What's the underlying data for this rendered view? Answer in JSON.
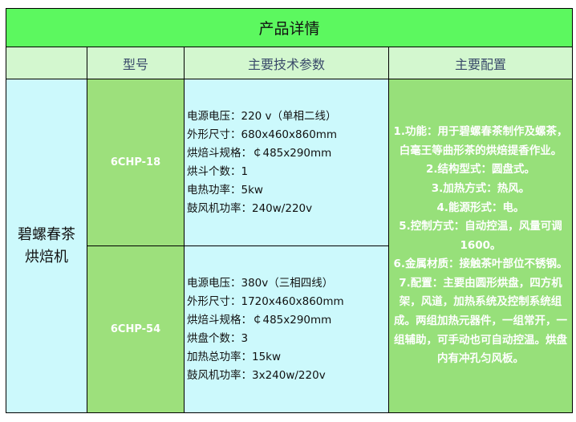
{
  "title": "产品详情",
  "headers": [
    "",
    "型号",
    "主要技术参数",
    "主要配置"
  ],
  "product_name_lines": [
    "碧螺春茶",
    "烘焙机"
  ],
  "models": [
    {
      "model": "6CHP-18",
      "specs": [
        "电源电压：220 v（单相二线）",
        "外形尺寸：680x460x860mm",
        "烘焙斗规格：￠485x290mm",
        "烘斗个数：1",
        "电热功率：5kw",
        "鼓风机功率：240w/220v"
      ]
    },
    {
      "model": "6CHP-54",
      "specs": [
        "电源电压：380v（三相四线）",
        "外形尺寸：1720x460x860mm",
        "烘焙斗规格：￠485x290mm",
        "烘盘个数：3",
        "加热总功率：15kw",
        "鼓风机功率：3x240w/220v"
      ]
    }
  ],
  "config_text": "1.功能：用于碧螺春茶制作及螺茶，白毫王等曲形茶的烘焙提香作业。\n2.结构型式：圆盘式。\n3.加热方式：热风。\n4.能源形式：电。\n5.控制方式：自动控温，风量可调1600。\n6.金属材质：接触茶叶部位不锈钢。\n7.配置：主要由圆形烘盘，四方机架，风道，加热系统及控制系统组成。两组加热元器件，一组常开，一组辅助，可手动也可自动控温。烘盘内有冲孔匀风板。",
  "colors": {
    "title_bg": "#5cf85f",
    "header_bg": "#d3f7cf",
    "name_bg": "#ccf9fc",
    "model_bg": "#9de07c",
    "config_bg": "#97e07a"
  }
}
